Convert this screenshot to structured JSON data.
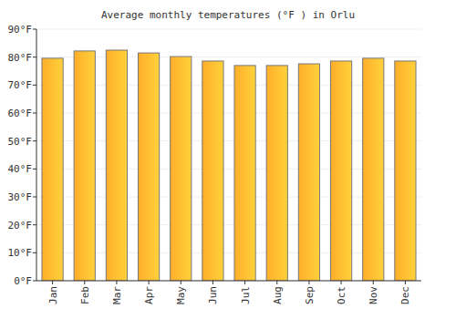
{
  "chart_data": {
    "type": "bar",
    "title": "Average monthly temperatures (°F ) in Orlu",
    "categories": [
      "Jan",
      "Feb",
      "Mar",
      "Apr",
      "May",
      "Jun",
      "Jul",
      "Aug",
      "Sep",
      "Oct",
      "Nov",
      "Dec"
    ],
    "values": [
      79.6,
      82.2,
      82.5,
      81.5,
      80.2,
      78.6,
      77,
      77,
      77.6,
      78.6,
      79.6,
      78.6
    ],
    "color": "#ffae2a",
    "ylim": [
      0,
      90
    ],
    "yticks": [
      {
        "value": 0,
        "label": "0°F"
      },
      {
        "value": 10,
        "label": "10°F"
      },
      {
        "value": 20,
        "label": "20°F"
      },
      {
        "value": 30,
        "label": "30°F"
      },
      {
        "value": 40,
        "label": "40°F"
      },
      {
        "value": 50,
        "label": "50°F"
      },
      {
        "value": 60,
        "label": "60°F"
      },
      {
        "value": 70,
        "label": "70°F"
      },
      {
        "value": 80,
        "label": "80°F"
      },
      {
        "value": 90,
        "label": "90°F"
      }
    ],
    "grid": true
  }
}
